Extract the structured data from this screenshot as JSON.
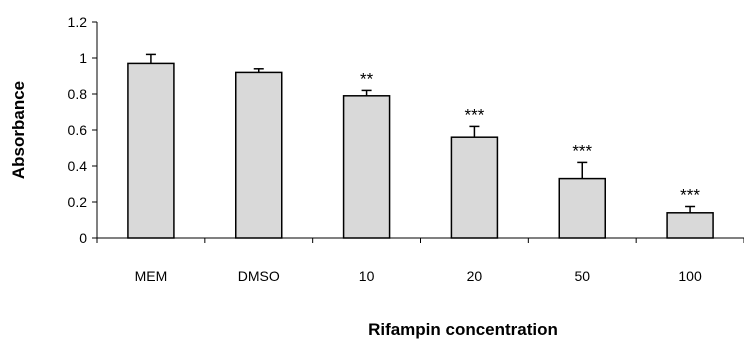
{
  "chart_data": {
    "type": "bar",
    "title": "",
    "xlabel": "Rifampin concentration",
    "ylabel": "Absorbance",
    "categories": [
      "MEM",
      "DMSO",
      "10",
      "20",
      "50",
      "100"
    ],
    "values": [
      0.97,
      0.92,
      0.79,
      0.56,
      0.33,
      0.14
    ],
    "errors": [
      0.05,
      0.02,
      0.03,
      0.06,
      0.09,
      0.035
    ],
    "annotations": [
      "",
      "",
      "**",
      "***",
      "***",
      "***"
    ],
    "ylim": [
      0,
      1.2
    ],
    "yticks": [
      "0",
      "0.2",
      "0.4",
      "0.6",
      "0.8",
      "1",
      "1.2"
    ],
    "grid": false,
    "bar_color": "#d9d9d9",
    "edge_color": "#000000"
  }
}
